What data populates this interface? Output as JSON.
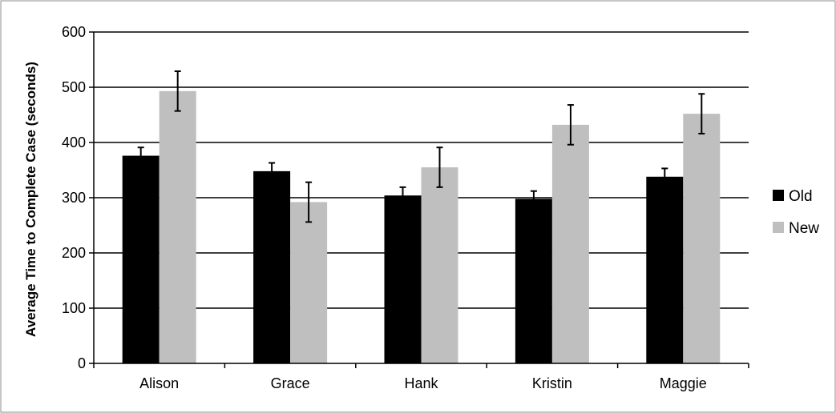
{
  "chart_data": {
    "type": "bar",
    "title": "",
    "xlabel": "",
    "ylabel": "Average Time to Complete Case (seconds)",
    "ylim": [
      0,
      600
    ],
    "yticks": [
      0,
      100,
      200,
      300,
      400,
      500,
      600
    ],
    "grid": true,
    "legend_position": "right",
    "categories": [
      "Alison",
      "Grace",
      "Hank",
      "Kristin",
      "Maggie"
    ],
    "series": [
      {
        "name": "Old",
        "color": "#000000",
        "values": [
          376,
          348,
          304,
          298,
          338
        ],
        "errors": [
          15,
          15,
          15,
          14,
          15
        ]
      },
      {
        "name": "New",
        "color": "#bfbfbf",
        "values": [
          493,
          292,
          355,
          432,
          452
        ],
        "errors": [
          36,
          36,
          36,
          36,
          36
        ]
      }
    ]
  }
}
